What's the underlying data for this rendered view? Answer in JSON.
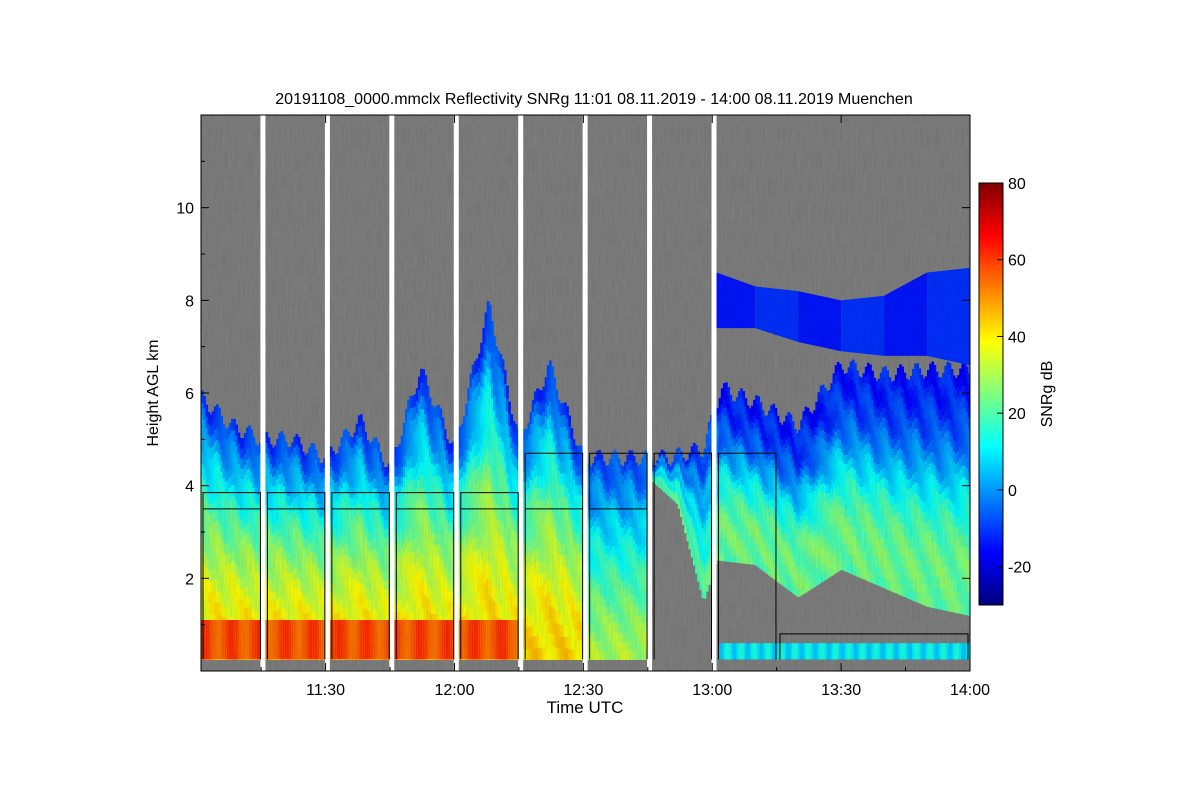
{
  "chart_data": {
    "type": "heatmap",
    "title": "20191108_0000.mmclx Reflectivity SNRg   11:01 08.11.2019 - 14:00 08.11.2019 Muenchen",
    "xlabel": "Time UTC",
    "ylabel": "Height AGL km",
    "x_ticks": [
      "11:30",
      "12:00",
      "12:30",
      "13:00",
      "13:30",
      "14:00"
    ],
    "x_tick_minutes": [
      30,
      60,
      90,
      120,
      150,
      180
    ],
    "xlim_minutes": [
      1,
      180
    ],
    "y_ticks": [
      2,
      4,
      6,
      8,
      10
    ],
    "ylim": [
      0,
      12
    ],
    "colorbar": {
      "label": "SNRg dB",
      "range": [
        -30,
        80
      ],
      "ticks": [
        -20,
        0,
        20,
        40,
        60,
        80
      ],
      "colormap": [
        "#00007f",
        "#0000ff",
        "#007fff",
        "#00ffff",
        "#7fff7f",
        "#ffff00",
        "#ff7f00",
        "#ff0000",
        "#7f0000"
      ]
    },
    "background_color": "#808080",
    "scan_gaps_minutes": [
      15.3,
      30.3,
      45.3,
      60.3,
      75.3,
      90.3,
      105.3,
      120.3
    ],
    "data_gaps_minutes": [
      90.3
    ],
    "outline_segments": [
      {
        "t0": 1,
        "t1": 15.3,
        "top": 3.85,
        "inner": 3.5
      },
      {
        "t0": 16,
        "t1": 30.3,
        "top": 3.85,
        "inner": 3.5
      },
      {
        "t0": 31,
        "t1": 45.3,
        "top": 3.85,
        "inner": 3.5
      },
      {
        "t0": 46,
        "t1": 60.3,
        "top": 3.85,
        "inner": 3.5
      },
      {
        "t0": 61,
        "t1": 75.3,
        "top": 3.85,
        "inner": 3.5
      },
      {
        "t0": 76,
        "t1": 90.3,
        "top": 4.7,
        "inner": 3.5
      },
      {
        "t0": 91,
        "t1": 105.3,
        "top": 4.7,
        "inner": 3.5
      },
      {
        "t0": 106,
        "t1": 120.3,
        "top": 4.7,
        "inner": null
      },
      {
        "t0": 121,
        "t1": 135.3,
        "top": 4.7,
        "inner": null
      },
      {
        "t0": 135.3,
        "t1": 180,
        "top": 0.8,
        "inner": null
      }
    ],
    "features": {
      "cloud_top_km": [
        [
          1,
          5.9
        ],
        [
          8,
          5.3
        ],
        [
          15,
          5.0
        ],
        [
          22,
          5.0
        ],
        [
          30,
          4.6
        ],
        [
          38,
          5.4
        ],
        [
          45,
          4.4
        ],
        [
          52,
          6.5
        ],
        [
          60,
          4.8
        ],
        [
          68,
          7.9
        ],
        [
          75,
          5.0
        ],
        [
          82,
          6.6
        ],
        [
          90,
          4.6
        ],
        [
          100,
          4.6
        ],
        [
          110,
          4.6
        ],
        [
          118,
          4.8
        ],
        [
          122,
          6.1
        ],
        [
          130,
          5.8
        ],
        [
          140,
          5.3
        ],
        [
          150,
          6.6
        ],
        [
          160,
          6.4
        ],
        [
          170,
          6.5
        ],
        [
          180,
          6.5
        ]
      ],
      "cirrus_layer": [
        [
          121,
          8.6,
          7.4
        ],
        [
          130,
          8.3,
          7.4
        ],
        [
          140,
          8.2,
          7.1
        ],
        [
          150,
          8.0,
          6.9
        ],
        [
          160,
          8.1,
          6.8
        ],
        [
          170,
          8.6,
          6.8
        ],
        [
          180,
          8.7,
          6.6
        ]
      ],
      "mid_layer_base_km": [
        [
          105,
          4.2
        ],
        [
          112,
          3.6
        ],
        [
          118,
          1.5
        ],
        [
          121,
          2.4
        ],
        [
          130,
          2.3
        ],
        [
          140,
          1.6
        ],
        [
          150,
          2.2
        ],
        [
          160,
          1.8
        ],
        [
          170,
          1.4
        ],
        [
          180,
          1.2
        ]
      ],
      "bright_band_km": [
        0.25,
        1.1
      ],
      "bright_band_until_minute": 75
    }
  }
}
